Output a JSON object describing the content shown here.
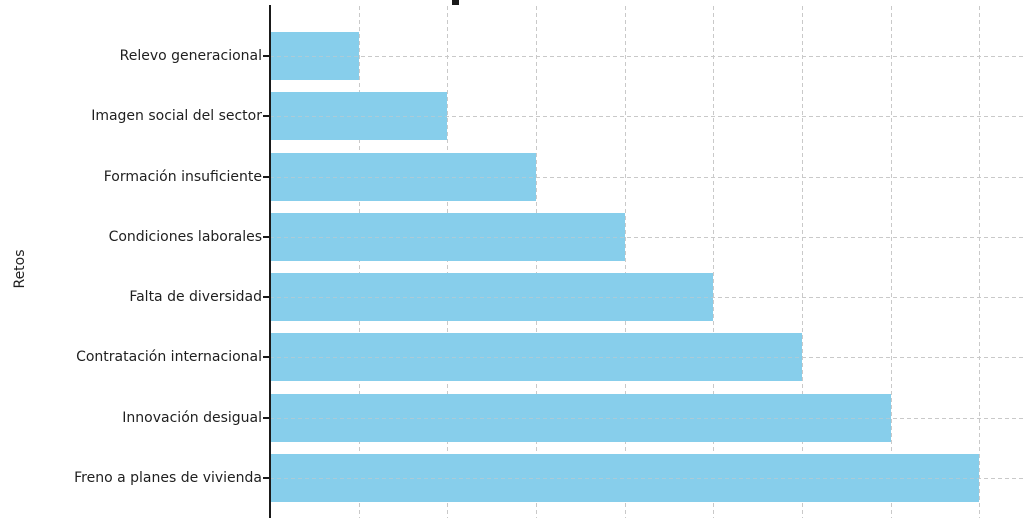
{
  "chart_data": {
    "type": "bar",
    "orientation": "horizontal",
    "title": "",
    "title_cut_off": true,
    "xlabel": "",
    "ylabel": "Retos",
    "categories": [
      "Relevo generacional",
      "Imagen social del sector",
      "Formación insuficiente",
      "Condiciones laborales",
      "Falta de diversidad",
      "Contratación internacional",
      "Innovación desigual",
      "Freno a planes de vivienda"
    ],
    "values": [
      1,
      2,
      3,
      4,
      5,
      6,
      7,
      8
    ],
    "xlim": [
      0,
      8.5
    ],
    "x_tick_labels_visible": false,
    "grid": true,
    "grid_style": "dashed",
    "grid_color": "#c9c9c9",
    "bar_color": "#87CEEB",
    "axis_color": "#1a1a1a",
    "text_color": "#1f1f1f",
    "legend": "none"
  }
}
